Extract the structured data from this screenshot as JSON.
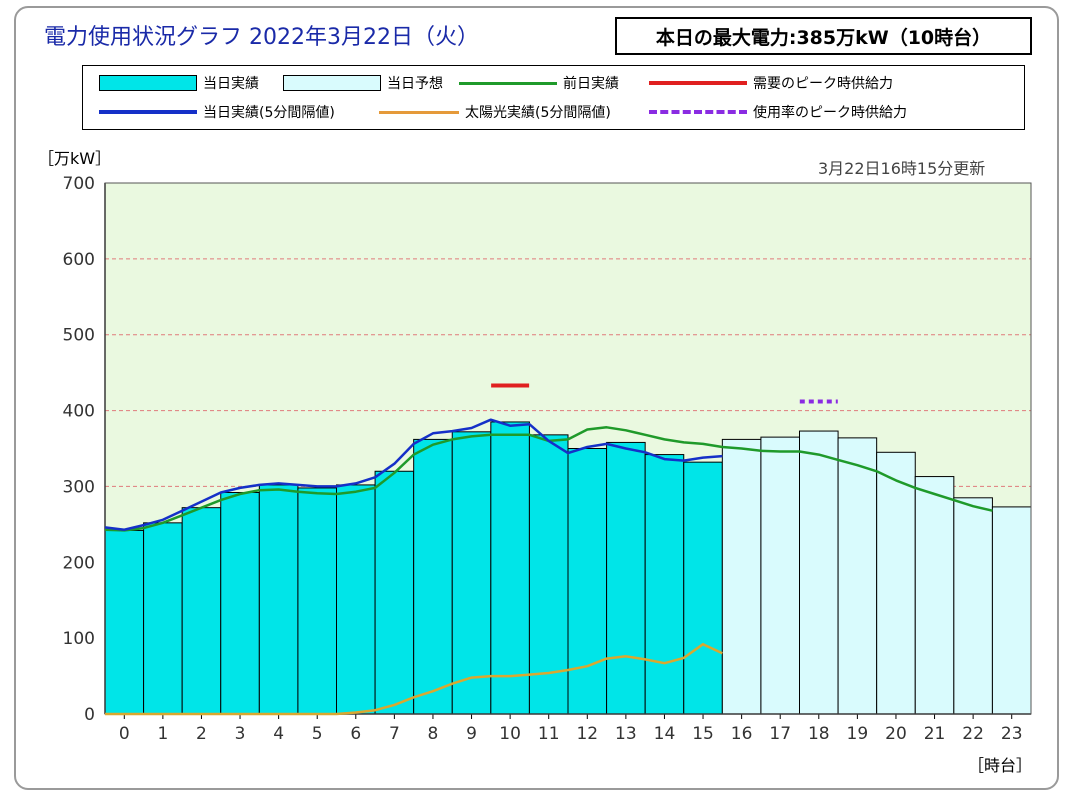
{
  "title": "電力使用状況グラフ 2022年3月22日（火）",
  "max_power_label": "本日の最大電力:385万kW（10時台）",
  "unit_label": "［万kW］",
  "updated_label": "3月22日16時15分更新",
  "hour_unit_label": "［時台］",
  "legend": [
    {
      "label": "当日実績",
      "kind": "box",
      "color": "#00e5e8"
    },
    {
      "label": "当日予想",
      "kind": "box",
      "color": "#d9fbfd"
    },
    {
      "label": "前日実績",
      "kind": "line",
      "color": "#1f9a2a"
    },
    {
      "label": "需要のピーク時供給力",
      "kind": "line",
      "color": "#e02020"
    },
    {
      "label": "当日実績(5分間隔値)",
      "kind": "line",
      "color": "#1530c8"
    },
    {
      "label": "太陽光実績(5分間隔値)",
      "kind": "line",
      "color": "#e59a3a"
    },
    {
      "label": "使用率のピーク時供給力",
      "kind": "dash",
      "color": "#8a2be2"
    }
  ],
  "colors": {
    "plot_background": "#eaf9e0",
    "actual_bar": "#00e5e8",
    "forecast_bar": "#d9fbfd",
    "prev_day": "#1f9a2a",
    "actual_5min": "#1530c8",
    "solar": "#d9a830",
    "demand_peak_supply": "#e02020",
    "usage_peak_supply": "#8a2be2",
    "gridline": "#e07b7b"
  },
  "chart_data": {
    "type": "bar",
    "title": "",
    "xlabel": "［時台］",
    "ylabel": "［万kW］",
    "ylim": [
      0,
      700
    ],
    "yticks": [
      0,
      100,
      200,
      300,
      400,
      500,
      600,
      700
    ],
    "grid": true,
    "categories": [
      "0",
      "1",
      "2",
      "3",
      "4",
      "5",
      "6",
      "7",
      "8",
      "9",
      "10",
      "11",
      "12",
      "13",
      "14",
      "15",
      "16",
      "17",
      "18",
      "19",
      "20",
      "21",
      "22",
      "23"
    ],
    "series": [
      {
        "name": "当日実績",
        "values": [
          242,
          252,
          272,
          292,
          302,
          298,
          302,
          320,
          362,
          372,
          385,
          368,
          350,
          358,
          342,
          332,
          null,
          null,
          null,
          null,
          null,
          null,
          null,
          null
        ]
      },
      {
        "name": "当日予想",
        "values": [
          null,
          null,
          null,
          null,
          null,
          null,
          null,
          null,
          null,
          null,
          null,
          null,
          null,
          null,
          null,
          null,
          362,
          365,
          373,
          364,
          345,
          313,
          285,
          273
        ]
      },
      {
        "name": "前日実績",
        "x": [
          0,
          0.5,
          1,
          1.5,
          2,
          2.5,
          3,
          3.5,
          4,
          4.5,
          5,
          5.5,
          6,
          6.5,
          7,
          7.5,
          8,
          8.5,
          9,
          9.5,
          10,
          10.5,
          11,
          11.5,
          12,
          12.5,
          13,
          13.5,
          14,
          14.5,
          15,
          15.5,
          16,
          16.5,
          17,
          17.5,
          18,
          18.5,
          19,
          19.5,
          20,
          20.5,
          21,
          21.5,
          22,
          22.5,
          23
        ],
        "values": [
          243,
          242,
          245,
          252,
          262,
          272,
          282,
          290,
          295,
          296,
          293,
          291,
          290,
          293,
          298,
          318,
          342,
          355,
          362,
          366,
          368,
          368,
          368,
          360,
          362,
          375,
          378,
          374,
          368,
          362,
          358,
          356,
          352,
          350,
          347,
          346,
          346,
          342,
          335,
          328,
          320,
          308,
          298,
          290,
          282,
          274,
          268
        ]
      },
      {
        "name": "当日実績(5分間隔値)",
        "x": [
          0,
          0.5,
          1,
          1.5,
          2,
          2.5,
          3,
          3.5,
          4,
          4.5,
          5,
          5.5,
          6,
          6.5,
          7,
          7.5,
          8,
          8.5,
          9,
          9.5,
          10,
          10.5,
          11,
          11.5,
          12,
          12.5,
          13,
          13.5,
          14,
          14.5,
          15,
          15.5,
          16
        ],
        "values": [
          246,
          243,
          249,
          256,
          268,
          280,
          292,
          298,
          302,
          304,
          302,
          300,
          300,
          304,
          312,
          330,
          356,
          370,
          373,
          377,
          388,
          380,
          382,
          360,
          344,
          352,
          356,
          350,
          345,
          336,
          334,
          338,
          340
        ]
      },
      {
        "name": "太陽光実績(5分間隔値)",
        "x": [
          0,
          1,
          2,
          3,
          4,
          5,
          6,
          6.5,
          7,
          7.5,
          8,
          8.5,
          9,
          9.5,
          10,
          10.5,
          11,
          11.5,
          12,
          12.5,
          13,
          13.5,
          14,
          14.5,
          15,
          15.5,
          16
        ],
        "values": [
          0,
          0,
          0,
          0,
          0,
          0,
          0,
          2,
          5,
          12,
          22,
          30,
          40,
          48,
          50,
          50,
          52,
          54,
          58,
          63,
          73,
          76,
          72,
          67,
          74,
          92,
          80
        ]
      }
    ],
    "demand_peak_supply": {
      "name": "需要のピーク時供給力",
      "hour": 10,
      "value": 433
    },
    "usage_peak_supply": {
      "name": "使用率のピーク時供給力",
      "hour": 18,
      "value": 412
    }
  }
}
